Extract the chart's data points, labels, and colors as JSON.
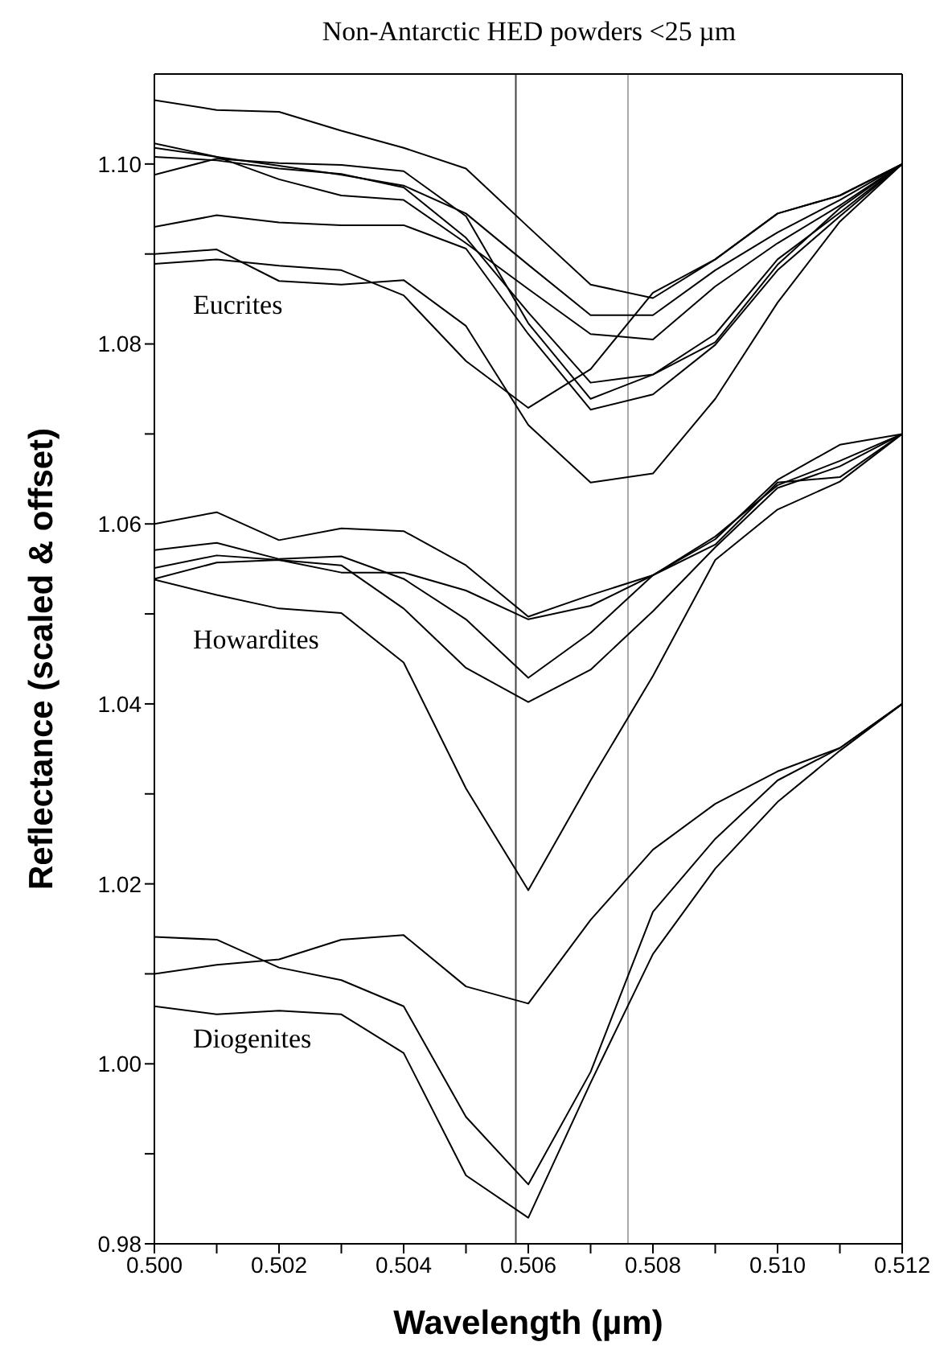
{
  "chart_data": {
    "type": "line",
    "title": "Non-Antarctic HED powders <25 µm",
    "xlabel": "Wavelength (µm)",
    "ylabel": "Reflectance (scaled & offset)",
    "x": [
      0.5,
      0.501,
      0.502,
      0.503,
      0.504,
      0.505,
      0.506,
      0.507,
      0.508,
      0.509,
      0.51,
      0.511,
      0.512
    ],
    "series": [
      {
        "color": "#000000",
        "values": [
          1.1071,
          1.106,
          1.1058,
          1.1037,
          1.1018,
          1.0995,
          1.093,
          1.0866,
          1.0851,
          1.0894,
          1.0945,
          1.0965,
          1.1
        ]
      },
      {
        "color": "#000000",
        "values": [
          1.1023,
          1.1008,
          1.0998,
          1.0988,
          1.0976,
          1.0945,
          1.0888,
          1.0832,
          1.0832,
          1.0882,
          1.0924,
          1.096,
          1.1
        ]
      },
      {
        "color": "#000000",
        "values": [
          1.1018,
          1.1008,
          1.0983,
          1.0965,
          1.096,
          1.0912,
          1.0861,
          1.0811,
          1.0805,
          1.0864,
          1.0912,
          1.0954,
          1.1
        ]
      },
      {
        "color": "#000000",
        "values": [
          1.1008,
          1.1004,
          1.0995,
          1.0989,
          1.0974,
          1.0918,
          1.0835,
          1.0757,
          1.0766,
          1.0811,
          1.0894,
          1.0946,
          1.1
        ]
      },
      {
        "color": "#000000",
        "values": [
          1.0988,
          1.1006,
          1.1001,
          1.0999,
          1.0992,
          1.0942,
          1.0823,
          1.0739,
          1.0766,
          1.0802,
          1.0888,
          1.0951,
          1.1
        ]
      },
      {
        "color": "#000000",
        "values": [
          1.093,
          1.0943,
          1.0935,
          1.0932,
          1.0932,
          1.0906,
          1.0811,
          1.0727,
          1.0744,
          1.0799,
          1.0882,
          1.0942,
          1.1
        ]
      },
      {
        "color": "#000000",
        "values": [
          1.09,
          1.0905,
          1.087,
          1.0866,
          1.0871,
          1.082,
          1.071,
          1.0646,
          1.0656,
          1.0739,
          1.0846,
          1.0936,
          1.1
        ]
      },
      {
        "color": "#000000",
        "values": [
          1.0889,
          1.0894,
          1.0887,
          1.0882,
          1.0854,
          1.0781,
          1.0729,
          1.0772,
          1.0857,
          1.0894,
          1.0945,
          1.0965,
          1.1
        ]
      },
      {
        "color": "#000000",
        "values": [
          1.06,
          1.0613,
          1.0582,
          1.0595,
          1.0592,
          1.0554,
          1.0497,
          1.0521,
          1.0543,
          1.0583,
          1.0649,
          1.0688,
          1.07
        ]
      },
      {
        "color": "#000000",
        "values": [
          1.0571,
          1.0579,
          1.0561,
          1.0564,
          1.0539,
          1.0494,
          1.0429,
          1.0479,
          1.0543,
          1.0586,
          1.0643,
          1.067,
          1.07
        ]
      },
      {
        "color": "#000000",
        "values": [
          1.0551,
          1.0565,
          1.056,
          1.0546,
          1.0546,
          1.0526,
          1.0494,
          1.0509,
          1.0543,
          1.0577,
          1.0646,
          1.0652,
          1.07
        ]
      },
      {
        "color": "#000000",
        "values": [
          1.0539,
          1.0557,
          1.056,
          1.0554,
          1.0506,
          1.044,
          1.0402,
          1.0438,
          1.0503,
          1.0574,
          1.064,
          1.0664,
          1.07
        ]
      },
      {
        "color": "#000000",
        "values": [
          1.0538,
          1.0521,
          1.0506,
          1.0501,
          1.0446,
          1.0306,
          1.0193,
          1.0315,
          1.0431,
          1.056,
          1.0616,
          1.0647,
          1.07
        ]
      },
      {
        "color": "#000000",
        "values": [
          1.0141,
          1.0138,
          1.0107,
          1.0093,
          1.0064,
          0.9941,
          0.9866,
          0.9991,
          1.0169,
          1.025,
          1.0315,
          1.0351,
          1.04
        ]
      },
      {
        "color": "#000000",
        "values": [
          1.0064,
          1.0055,
          1.0059,
          1.0055,
          1.0012,
          0.9876,
          0.9829,
          0.9979,
          1.0122,
          1.0217,
          1.0291,
          1.0348,
          1.04
        ]
      },
      {
        "color": "#000000",
        "values": [
          1.01,
          1.011,
          1.0116,
          1.0138,
          1.0143,
          1.0086,
          1.0067,
          1.016,
          1.0238,
          1.0289,
          1.0325,
          1.0351,
          1.04
        ]
      }
    ],
    "xlim": [
      0.5,
      0.512
    ],
    "xticks": [
      {
        "value": 0.5,
        "label": "0.500"
      },
      {
        "value": 0.501,
        "label": null
      },
      {
        "value": 0.502,
        "label": "0.502"
      },
      {
        "value": 0.503,
        "label": null
      },
      {
        "value": 0.504,
        "label": "0.504"
      },
      {
        "value": 0.505,
        "label": null
      },
      {
        "value": 0.506,
        "label": "0.506"
      },
      {
        "value": 0.507,
        "label": null
      },
      {
        "value": 0.508,
        "label": "0.508"
      },
      {
        "value": 0.509,
        "label": null
      },
      {
        "value": 0.51,
        "label": "0.510"
      },
      {
        "value": 0.511,
        "label": null
      },
      {
        "value": 0.512,
        "label": "0.512"
      }
    ],
    "ylim": [
      0.98,
      1.11
    ],
    "yticks": [
      {
        "value": 0.98,
        "label": "0.98"
      },
      {
        "value": 0.99,
        "label": null
      },
      {
        "value": 1.0,
        "label": "1.00"
      },
      {
        "value": 1.01,
        "label": null
      },
      {
        "value": 1.02,
        "label": "1.02"
      },
      {
        "value": 1.03,
        "label": null
      },
      {
        "value": 1.04,
        "label": "1.04"
      },
      {
        "value": 1.05,
        "label": null
      },
      {
        "value": 1.06,
        "label": "1.06"
      },
      {
        "value": 1.07,
        "label": null
      },
      {
        "value": 1.08,
        "label": "1.08"
      },
      {
        "value": 1.09,
        "label": null
      },
      {
        "value": 1.1,
        "label": "1.10"
      }
    ],
    "ref_lines": [
      {
        "axis": "x",
        "value": 0.5058,
        "color": "#444444"
      },
      {
        "axis": "x",
        "value": 0.5076,
        "color": "#aaaaaa"
      }
    ],
    "annotations": [
      "Eucrites",
      "Howardites",
      "Diogenites"
    ],
    "marker": "none",
    "line_style": "solid"
  }
}
